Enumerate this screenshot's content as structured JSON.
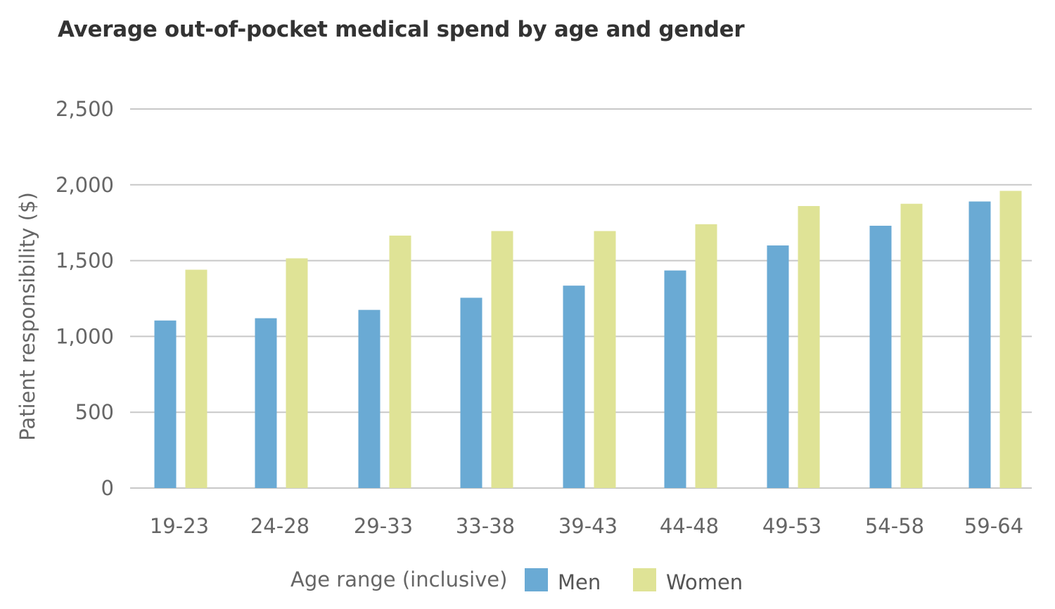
{
  "chart_data": {
    "type": "bar",
    "title": "Average out-of-pocket medical spend by age and gender",
    "xlabel": "Age range (inclusive)",
    "ylabel": "Patient responsibility ($)",
    "categories": [
      "19-23",
      "24-28",
      "29-33",
      "33-38",
      "39-43",
      "44-48",
      "49-53",
      "54-58",
      "59-64"
    ],
    "series": [
      {
        "name": "Men",
        "color": "#6aaad4",
        "values": [
          1105,
          1120,
          1175,
          1255,
          1335,
          1435,
          1600,
          1730,
          1890
        ]
      },
      {
        "name": "Women",
        "color": "#dfe396",
        "values": [
          1440,
          1515,
          1665,
          1695,
          1695,
          1740,
          1860,
          1875,
          1960
        ]
      }
    ],
    "ylim": [
      0,
      2500
    ],
    "yticks": [
      0,
      500,
      1000,
      1500,
      2000,
      2500
    ],
    "ytick_labels": [
      "0",
      "500",
      "1,000",
      "1,500",
      "2,000",
      "2,500"
    ],
    "grid": true,
    "gridline_color": "#c8c8c8",
    "legend_position": "bottom"
  }
}
